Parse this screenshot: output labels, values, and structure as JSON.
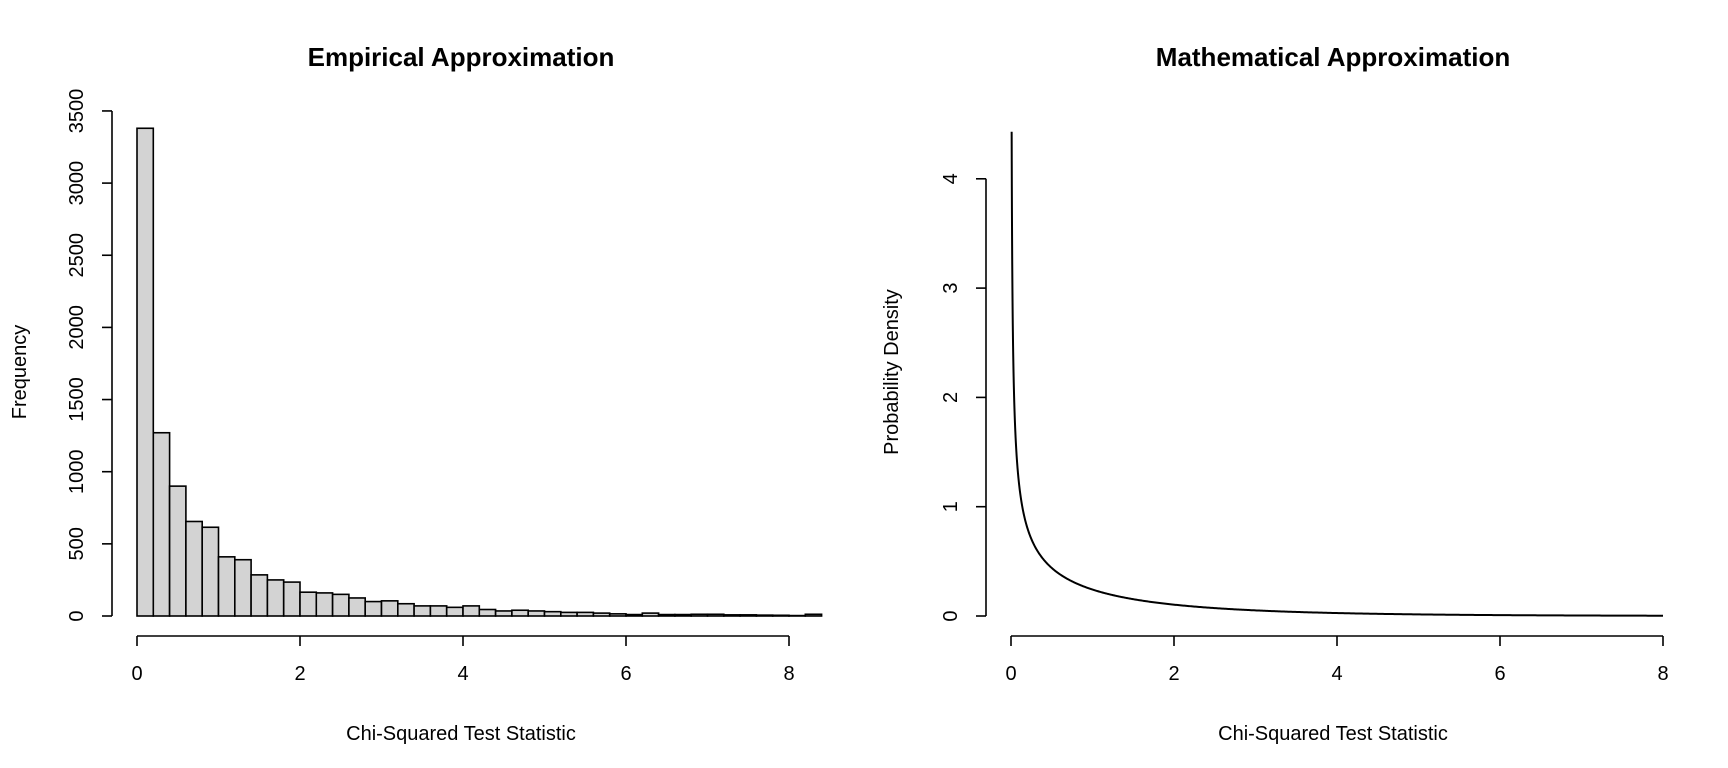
{
  "chart_data": [
    {
      "type": "bar",
      "subtype": "histogram",
      "title": "Empirical Approximation",
      "xlabel": "Chi-Squared Test Statistic",
      "ylabel": "Frequency",
      "bin_width": 0.2,
      "bin_start": 0,
      "xlim": [
        0,
        8.35
      ],
      "ylim": [
        0,
        3500
      ],
      "xticks": [
        0,
        2,
        4,
        6,
        8
      ],
      "yticks": [
        0,
        500,
        1000,
        1500,
        2000,
        2500,
        3000,
        3500
      ],
      "values": [
        3380,
        1270,
        900,
        655,
        615,
        410,
        390,
        285,
        250,
        235,
        165,
        160,
        150,
        125,
        100,
        105,
        85,
        70,
        70,
        60,
        70,
        45,
        35,
        40,
        35,
        30,
        25,
        25,
        20,
        15,
        10,
        20,
        10,
        10,
        12,
        12,
        8,
        8,
        6,
        5,
        3,
        12
      ],
      "bar_fill": "#d3d3d3",
      "grid": false
    },
    {
      "type": "line",
      "title": "Mathematical Approximation",
      "xlabel": "Chi-Squared Test Statistic",
      "ylabel": "Probability Density",
      "function": "chi-squared density, df = 1",
      "xlim": [
        0,
        8
      ],
      "ylim": [
        0,
        4
      ],
      "xticks": [
        0,
        2,
        4,
        6,
        8
      ],
      "yticks": [
        0,
        1,
        2,
        3,
        4
      ],
      "x_from": 0.008,
      "x_to": 8,
      "y_top": 4.43,
      "grid": false
    }
  ]
}
